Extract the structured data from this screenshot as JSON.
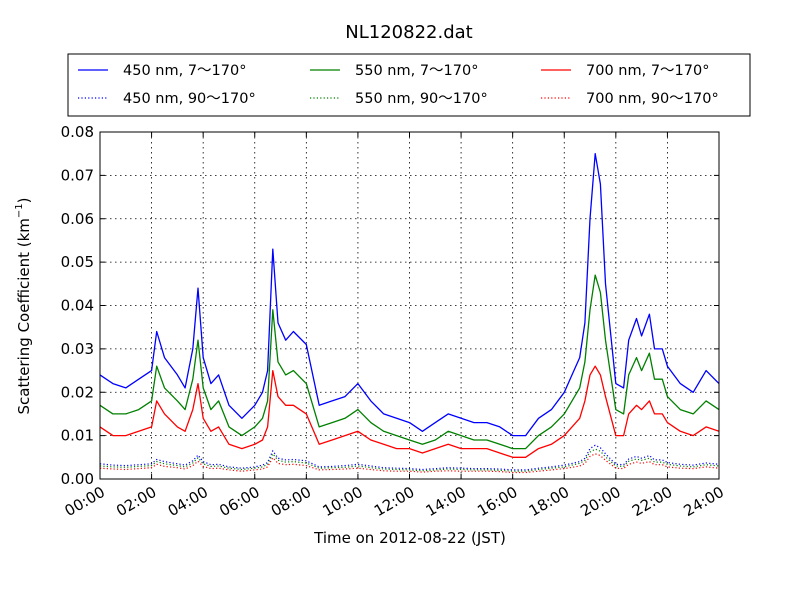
{
  "chart_data": {
    "type": "line",
    "title": "NL120822.dat",
    "xlabel": "Time on 2012-08-22 (JST)",
    "ylabel": "Scattering Coefficient (km",
    "ylabel_sup": "−1",
    "ylabel_end": ")",
    "xlim": [
      0,
      24
    ],
    "ylim": [
      0,
      0.08
    ],
    "grid": true,
    "legend_position": "top",
    "x_tick_values": [
      0,
      2,
      4,
      6,
      8,
      10,
      12,
      14,
      16,
      18,
      20,
      22,
      24
    ],
    "x_tick_labels": [
      "00:00",
      "02:00",
      "04:00",
      "06:00",
      "08:00",
      "10:00",
      "12:00",
      "14:00",
      "16:00",
      "18:00",
      "20:00",
      "22:00",
      "24:00"
    ],
    "y_tick_values": [
      0,
      0.01,
      0.02,
      0.03,
      0.04,
      0.05,
      0.06,
      0.07,
      0.08
    ],
    "y_tick_labels": [
      "0.00",
      "0.01",
      "0.02",
      "0.03",
      "0.04",
      "0.05",
      "0.06",
      "0.07",
      "0.08"
    ],
    "x": [
      0,
      0.5,
      1,
      1.5,
      2,
      2.2,
      2.5,
      3,
      3.3,
      3.6,
      3.8,
      4,
      4.3,
      4.6,
      5,
      5.5,
      6,
      6.3,
      6.5,
      6.7,
      6.9,
      7.2,
      7.5,
      8,
      8.5,
      9,
      9.5,
      10,
      10.5,
      11,
      11.5,
      12,
      12.5,
      13,
      13.5,
      14,
      14.5,
      15,
      15.5,
      16,
      16.5,
      17,
      17.5,
      18,
      18.3,
      18.6,
      18.8,
      19,
      19.2,
      19.4,
      19.6,
      20,
      20.3,
      20.5,
      20.8,
      21,
      21.3,
      21.5,
      21.8,
      22,
      22.5,
      23,
      23.5,
      24
    ],
    "series": [
      {
        "name": "450 nm, 7～170°",
        "color": "#0000ff",
        "style": "solid",
        "values": [
          0.024,
          0.022,
          0.021,
          0.023,
          0.025,
          0.034,
          0.028,
          0.024,
          0.021,
          0.03,
          0.044,
          0.028,
          0.022,
          0.024,
          0.017,
          0.014,
          0.017,
          0.02,
          0.025,
          0.053,
          0.036,
          0.032,
          0.034,
          0.031,
          0.017,
          0.018,
          0.019,
          0.022,
          0.018,
          0.015,
          0.014,
          0.013,
          0.011,
          0.013,
          0.015,
          0.014,
          0.013,
          0.013,
          0.012,
          0.01,
          0.01,
          0.014,
          0.016,
          0.02,
          0.024,
          0.028,
          0.036,
          0.06,
          0.075,
          0.068,
          0.045,
          0.022,
          0.021,
          0.032,
          0.037,
          0.033,
          0.038,
          0.03,
          0.03,
          0.026,
          0.022,
          0.02,
          0.025,
          0.022
        ]
      },
      {
        "name": "550 nm, 7～170°",
        "color": "#008000",
        "style": "solid",
        "values": [
          0.017,
          0.015,
          0.015,
          0.016,
          0.018,
          0.026,
          0.021,
          0.018,
          0.016,
          0.023,
          0.032,
          0.021,
          0.016,
          0.018,
          0.012,
          0.01,
          0.012,
          0.014,
          0.018,
          0.039,
          0.027,
          0.024,
          0.025,
          0.022,
          0.012,
          0.013,
          0.014,
          0.016,
          0.013,
          0.011,
          0.01,
          0.009,
          0.008,
          0.009,
          0.011,
          0.01,
          0.009,
          0.009,
          0.008,
          0.007,
          0.007,
          0.01,
          0.012,
          0.015,
          0.018,
          0.021,
          0.027,
          0.039,
          0.047,
          0.043,
          0.032,
          0.016,
          0.015,
          0.024,
          0.028,
          0.025,
          0.029,
          0.023,
          0.023,
          0.019,
          0.016,
          0.015,
          0.018,
          0.016
        ]
      },
      {
        "name": "700 nm, 7～170°",
        "color": "#ff0000",
        "style": "solid",
        "values": [
          0.012,
          0.01,
          0.01,
          0.011,
          0.012,
          0.018,
          0.015,
          0.012,
          0.011,
          0.016,
          0.022,
          0.014,
          0.011,
          0.012,
          0.008,
          0.007,
          0.008,
          0.009,
          0.012,
          0.025,
          0.019,
          0.017,
          0.017,
          0.015,
          0.008,
          0.009,
          0.01,
          0.011,
          0.009,
          0.008,
          0.007,
          0.007,
          0.006,
          0.007,
          0.008,
          0.007,
          0.007,
          0.007,
          0.006,
          0.005,
          0.005,
          0.007,
          0.008,
          0.01,
          0.012,
          0.014,
          0.018,
          0.024,
          0.026,
          0.024,
          0.019,
          0.01,
          0.01,
          0.015,
          0.017,
          0.016,
          0.018,
          0.015,
          0.015,
          0.013,
          0.011,
          0.01,
          0.012,
          0.011
        ]
      },
      {
        "name": "450 nm, 90～170°",
        "color": "#0000ff",
        "style": "dotted",
        "values": [
          0.0035,
          0.0032,
          0.0031,
          0.0033,
          0.0035,
          0.0045,
          0.004,
          0.0035,
          0.0032,
          0.0042,
          0.0055,
          0.004,
          0.0033,
          0.0034,
          0.0028,
          0.0025,
          0.0028,
          0.0032,
          0.0038,
          0.0065,
          0.0048,
          0.0044,
          0.0045,
          0.0042,
          0.0028,
          0.0029,
          0.0031,
          0.0034,
          0.003,
          0.0026,
          0.0025,
          0.0024,
          0.0022,
          0.0024,
          0.0026,
          0.0025,
          0.0024,
          0.0024,
          0.0023,
          0.0021,
          0.0021,
          0.0025,
          0.0028,
          0.0032,
          0.0036,
          0.004,
          0.0048,
          0.007,
          0.0078,
          0.0072,
          0.0058,
          0.0034,
          0.0033,
          0.0046,
          0.0052,
          0.0048,
          0.0054,
          0.0044,
          0.0044,
          0.0038,
          0.0034,
          0.0032,
          0.0037,
          0.0034
        ]
      },
      {
        "name": "550 nm, 90～170°",
        "color": "#008000",
        "style": "dotted",
        "values": [
          0.003,
          0.0028,
          0.0027,
          0.0029,
          0.0031,
          0.004,
          0.0035,
          0.0031,
          0.0028,
          0.0037,
          0.0049,
          0.0035,
          0.0029,
          0.003,
          0.0025,
          0.0022,
          0.0025,
          0.0028,
          0.0034,
          0.0058,
          0.0043,
          0.0039,
          0.004,
          0.0037,
          0.0025,
          0.0026,
          0.0027,
          0.003,
          0.0026,
          0.0023,
          0.0022,
          0.0021,
          0.0019,
          0.0021,
          0.0023,
          0.0022,
          0.0021,
          0.0021,
          0.002,
          0.0018,
          0.0018,
          0.0022,
          0.0025,
          0.0028,
          0.0032,
          0.0036,
          0.0043,
          0.0062,
          0.0069,
          0.0064,
          0.0051,
          0.003,
          0.0029,
          0.0041,
          0.0046,
          0.0043,
          0.0048,
          0.0039,
          0.0039,
          0.0034,
          0.003,
          0.0028,
          0.0033,
          0.003
        ]
      },
      {
        "name": "700 nm, 90～170°",
        "color": "#ff0000",
        "style": "dotted",
        "values": [
          0.0025,
          0.0023,
          0.0022,
          0.0024,
          0.0026,
          0.0034,
          0.0029,
          0.0026,
          0.0023,
          0.0031,
          0.0041,
          0.0029,
          0.0024,
          0.0025,
          0.0021,
          0.0018,
          0.0021,
          0.0023,
          0.0028,
          0.0049,
          0.0036,
          0.0033,
          0.0034,
          0.0031,
          0.0021,
          0.0022,
          0.0023,
          0.0025,
          0.0022,
          0.0019,
          0.0018,
          0.0018,
          0.0016,
          0.0018,
          0.0019,
          0.0018,
          0.0018,
          0.0018,
          0.0017,
          0.0015,
          0.0015,
          0.0018,
          0.0021,
          0.0024,
          0.0027,
          0.003,
          0.0036,
          0.0052,
          0.0058,
          0.0054,
          0.0043,
          0.0025,
          0.0024,
          0.0034,
          0.0039,
          0.0036,
          0.004,
          0.0033,
          0.0033,
          0.0028,
          0.0025,
          0.0024,
          0.0028,
          0.0025
        ]
      }
    ]
  }
}
